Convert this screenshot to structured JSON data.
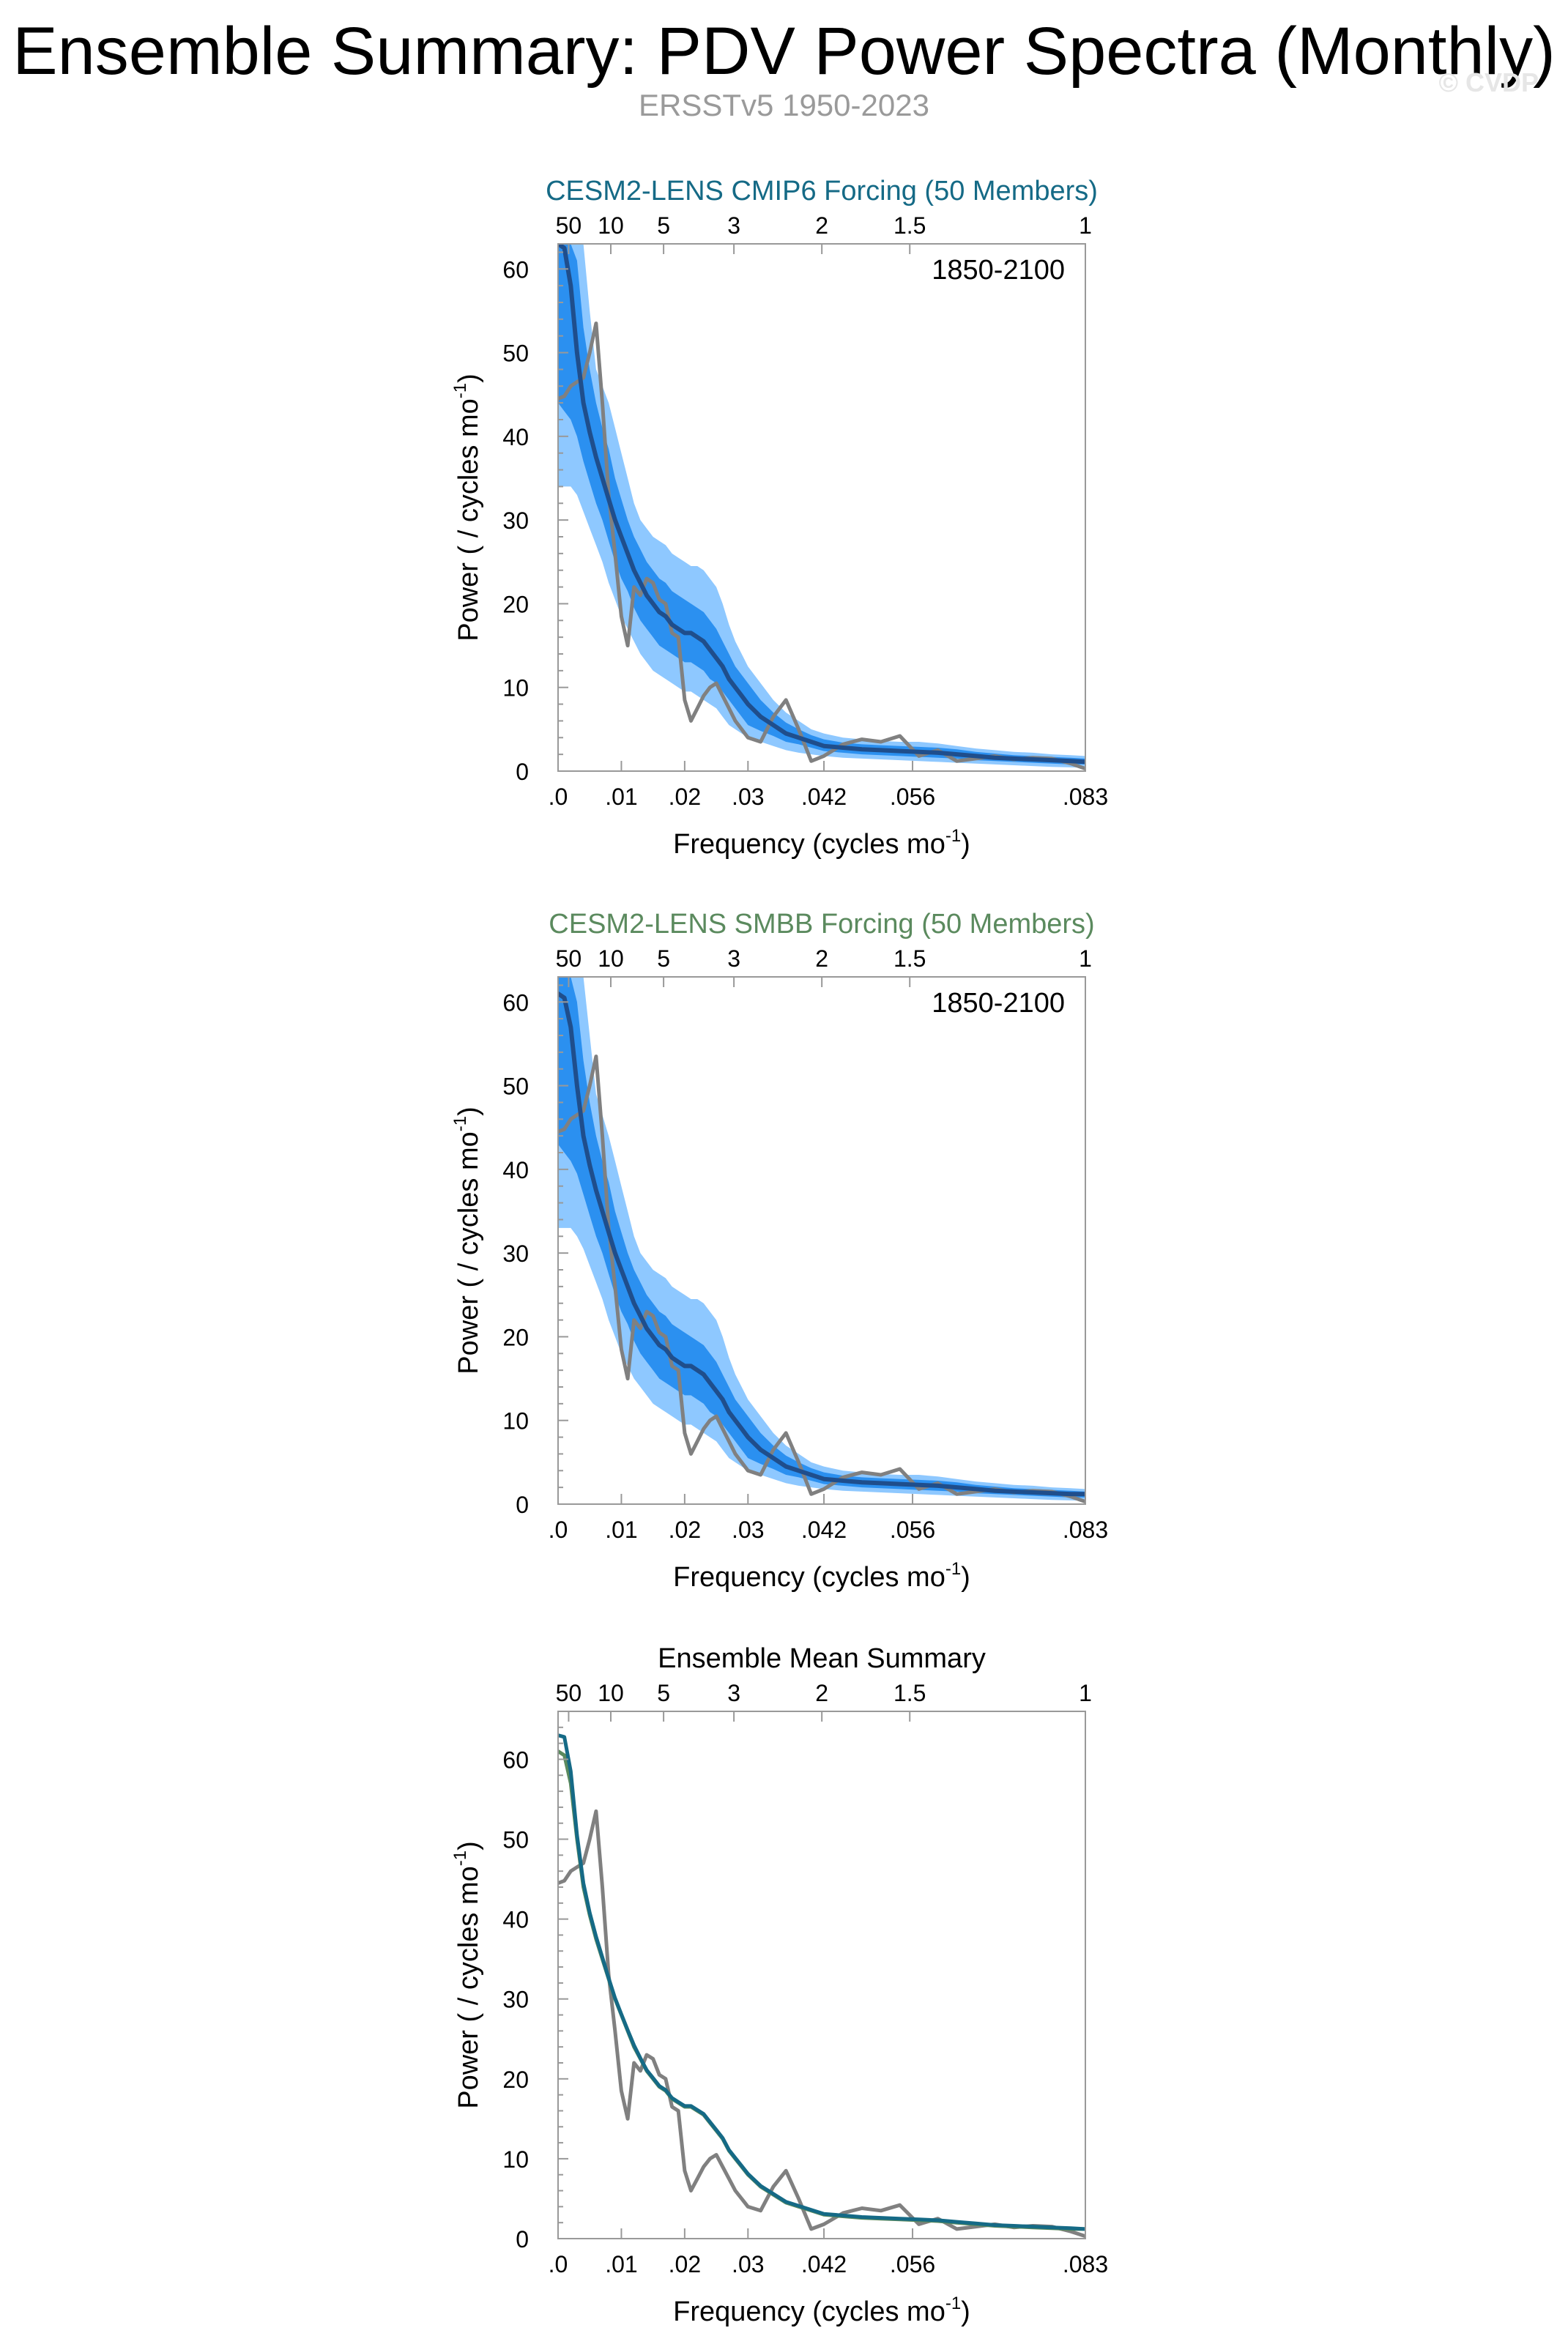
{
  "title": "Ensemble Summary: PDV Power Spectra (Monthly)",
  "subtitle": "ERSSTv5 1950-2023",
  "copyright": "© CVDP",
  "colors": {
    "cmip6": "#156a86",
    "smbb": "#5b8a5e",
    "obs": "#808080",
    "mean": "#1f4e8c",
    "band_outer": "#8ec8ff",
    "band_inner": "#2b90f0"
  },
  "chart_data": [
    {
      "type": "line",
      "title": "CESM2-LENS CMIP6 Forcing (50 Members)",
      "title_color_key": "cmip6",
      "period_label": "1850-2100",
      "xlabel": "Frequency (cycles mo",
      "xlabel_sup": "-1",
      "xlabel_end": ")",
      "ylabel": "Power ( / cycles mo",
      "ylabel_sup": "-1",
      "ylabel_end": ")",
      "xlim": [
        0,
        0.0833
      ],
      "ylim": [
        0,
        63
      ],
      "x_ticks": [
        {
          "v": 0,
          "label": ".0"
        },
        {
          "v": 0.01,
          "label": ".01"
        },
        {
          "v": 0.02,
          "label": ".02"
        },
        {
          "v": 0.03,
          "label": ".03"
        },
        {
          "v": 0.042,
          "label": ".042"
        },
        {
          "v": 0.056,
          "label": ".056"
        },
        {
          "v": 0.0833,
          "label": ".083"
        }
      ],
      "top_ticks": [
        {
          "v": 0.00167,
          "label": "50"
        },
        {
          "v": 0.00833,
          "label": "10"
        },
        {
          "v": 0.01667,
          "label": "5"
        },
        {
          "v": 0.02778,
          "label": "3"
        },
        {
          "v": 0.04167,
          "label": "2"
        },
        {
          "v": 0.05556,
          "label": "1.5"
        },
        {
          "v": 0.0833,
          "label": "1"
        }
      ],
      "y_ticks": [
        0,
        10,
        20,
        30,
        40,
        50,
        60
      ],
      "x": [
        0,
        0.001,
        0.002,
        0.003,
        0.004,
        0.005,
        0.006,
        0.007,
        0.008,
        0.009,
        0.01,
        0.011,
        0.012,
        0.013,
        0.014,
        0.015,
        0.016,
        0.017,
        0.018,
        0.019,
        0.02,
        0.021,
        0.022,
        0.023,
        0.024,
        0.025,
        0.026,
        0.027,
        0.028,
        0.029,
        0.03,
        0.032,
        0.034,
        0.036,
        0.038,
        0.04,
        0.042,
        0.045,
        0.048,
        0.051,
        0.054,
        0.057,
        0.06,
        0.063,
        0.066,
        0.069,
        0.072,
        0.075,
        0.078,
        0.081,
        0.0833
      ],
      "series": [
        {
          "name": "ensemble mean",
          "color_key": "mean",
          "width": 6,
          "values": [
            63,
            62.5,
            58,
            50,
            44,
            40.5,
            37.5,
            35,
            32.5,
            30,
            28,
            26,
            24,
            22.5,
            21,
            20,
            19,
            18.5,
            17.5,
            17,
            16.5,
            16.5,
            16,
            15.5,
            14.5,
            13.5,
            12.5,
            11,
            10,
            9,
            8,
            6.5,
            5.5,
            4.5,
            4,
            3.5,
            3,
            2.8,
            2.6,
            2.5,
            2.4,
            2.3,
            2.2,
            2.0,
            1.8,
            1.6,
            1.5,
            1.4,
            1.3,
            1.2,
            1.1
          ]
        },
        {
          "name": "ERSSTv5",
          "color_key": "obs",
          "width": 5,
          "values": [
            44.5,
            44.8,
            46,
            46.5,
            47,
            50,
            53.5,
            44,
            33,
            26,
            18.5,
            15,
            22,
            21,
            23,
            22.5,
            20.5,
            20,
            16.5,
            16,
            8.5,
            6,
            7.5,
            9,
            10,
            10.5,
            9,
            7.5,
            6,
            5,
            4,
            3.5,
            6.5,
            8.5,
            5,
            1.2,
            1.8,
            3.2,
            3.8,
            3.5,
            4.2,
            1.8,
            2.5,
            1.2,
            1.5,
            1.8,
            1.4,
            1.6,
            1.5,
            0.9,
            0.3
          ]
        }
      ],
      "band_outer_low": [
        34,
        34,
        34,
        33,
        31,
        29,
        27,
        25,
        22.5,
        20.5,
        18.5,
        17,
        15.5,
        14,
        13,
        12,
        11.5,
        11,
        10.5,
        10,
        9.5,
        9.5,
        9,
        8.5,
        8,
        7.5,
        6.5,
        5.5,
        5,
        4.5,
        4,
        3.5,
        3,
        2.5,
        2.2,
        2,
        1.8,
        1.6,
        1.5,
        1.4,
        1.3,
        1.2,
        1.1,
        1.0,
        0.9,
        0.8,
        0.7,
        0.6,
        0.5,
        0.45,
        0.4
      ],
      "band_outer_high": [
        63,
        63,
        63,
        63,
        63,
        55,
        48,
        46,
        44,
        41,
        38,
        35,
        32,
        30,
        29,
        28,
        27.5,
        27,
        26,
        25.5,
        25,
        24.5,
        24.5,
        24,
        23,
        22,
        20,
        17.5,
        15.5,
        14,
        12.5,
        10.5,
        8.5,
        7,
        6,
        5,
        4.5,
        4,
        3.8,
        3.6,
        3.5,
        3.5,
        3.3,
        3.0,
        2.7,
        2.5,
        2.3,
        2.2,
        2.0,
        1.9,
        1.8
      ],
      "band_inner_low": [
        44,
        43,
        42,
        40,
        37,
        34.5,
        32,
        30,
        27.5,
        25,
        23,
        21.5,
        19.5,
        18,
        17,
        16,
        15,
        14.5,
        14,
        13.5,
        13,
        13,
        12.5,
        12,
        11,
        10.5,
        9.5,
        8.5,
        7.5,
        6.5,
        5.5,
        4.8,
        4.2,
        3.5,
        3.2,
        2.8,
        2.4,
        2.2,
        2.0,
        1.9,
        1.8,
        1.7,
        1.6,
        1.5,
        1.3,
        1.2,
        1.1,
        1.0,
        0.9,
        0.8,
        0.8
      ],
      "band_inner_high": [
        63,
        63,
        63,
        61,
        53,
        48,
        44,
        41,
        38.5,
        35,
        32.5,
        30,
        28,
        26.5,
        25,
        24,
        23,
        22.5,
        21.5,
        21,
        20.5,
        20,
        19.5,
        19,
        18,
        17,
        15.5,
        14,
        12.5,
        11.5,
        10.5,
        8.5,
        7,
        5.8,
        5,
        4.3,
        3.8,
        3.4,
        3.2,
        3.1,
        3.0,
        2.9,
        2.8,
        2.6,
        2.3,
        2.1,
        1.9,
        1.8,
        1.7,
        1.6,
        1.5
      ]
    },
    {
      "type": "line",
      "title": "CESM2-LENS SMBB Forcing (50 Members)",
      "title_color_key": "smbb",
      "period_label": "1850-2100",
      "xlabel": "Frequency (cycles mo",
      "xlabel_sup": "-1",
      "xlabel_end": ")",
      "ylabel": "Power ( / cycles mo",
      "ylabel_sup": "-1",
      "ylabel_end": ")",
      "xlim": [
        0,
        0.0833
      ],
      "ylim": [
        0,
        63
      ],
      "x_ticks": [
        {
          "v": 0,
          "label": ".0"
        },
        {
          "v": 0.01,
          "label": ".01"
        },
        {
          "v": 0.02,
          "label": ".02"
        },
        {
          "v": 0.03,
          "label": ".03"
        },
        {
          "v": 0.042,
          "label": ".042"
        },
        {
          "v": 0.056,
          "label": ".056"
        },
        {
          "v": 0.0833,
          "label": ".083"
        }
      ],
      "top_ticks": [
        {
          "v": 0.00167,
          "label": "50"
        },
        {
          "v": 0.00833,
          "label": "10"
        },
        {
          "v": 0.01667,
          "label": "5"
        },
        {
          "v": 0.02778,
          "label": "3"
        },
        {
          "v": 0.04167,
          "label": "2"
        },
        {
          "v": 0.05556,
          "label": "1.5"
        },
        {
          "v": 0.0833,
          "label": "1"
        }
      ],
      "y_ticks": [
        0,
        10,
        20,
        30,
        40,
        50,
        60
      ],
      "x": [
        0,
        0.001,
        0.002,
        0.003,
        0.004,
        0.005,
        0.006,
        0.007,
        0.008,
        0.009,
        0.01,
        0.011,
        0.012,
        0.013,
        0.014,
        0.015,
        0.016,
        0.017,
        0.018,
        0.019,
        0.02,
        0.021,
        0.022,
        0.023,
        0.024,
        0.025,
        0.026,
        0.027,
        0.028,
        0.029,
        0.03,
        0.032,
        0.034,
        0.036,
        0.038,
        0.04,
        0.042,
        0.045,
        0.048,
        0.051,
        0.054,
        0.057,
        0.06,
        0.063,
        0.066,
        0.069,
        0.072,
        0.075,
        0.078,
        0.081,
        0.0833
      ],
      "series": [
        {
          "name": "ensemble mean",
          "color_key": "mean",
          "width": 6,
          "values": [
            61,
            60.5,
            57,
            50,
            44,
            40.5,
            37.5,
            35,
            32.5,
            30,
            28,
            26,
            24,
            22.5,
            21,
            20,
            19,
            18.5,
            17.5,
            17,
            16.5,
            16.5,
            16,
            15.5,
            14.5,
            13.5,
            12.5,
            11,
            10,
            9,
            8,
            6.5,
            5.5,
            4.5,
            4,
            3.5,
            3,
            2.8,
            2.6,
            2.5,
            2.4,
            2.3,
            2.2,
            2.0,
            1.8,
            1.6,
            1.5,
            1.4,
            1.3,
            1.2,
            1.2
          ]
        },
        {
          "name": "ERSSTv5",
          "color_key": "obs",
          "width": 5,
          "values": [
            44.5,
            44.8,
            46,
            46.5,
            47,
            50,
            53.5,
            44,
            33,
            26,
            18.5,
            15,
            22,
            21,
            23,
            22.5,
            20.5,
            20,
            16.5,
            16,
            8.5,
            6,
            7.5,
            9,
            10,
            10.5,
            9,
            7.5,
            6,
            5,
            4,
            3.5,
            6.5,
            8.5,
            5,
            1.2,
            1.8,
            3.2,
            3.8,
            3.5,
            4.2,
            1.8,
            2.5,
            1.2,
            1.5,
            1.8,
            1.4,
            1.6,
            1.5,
            0.9,
            0.3
          ]
        }
      ],
      "band_outer_low": [
        33,
        33,
        33,
        32,
        30.5,
        28.5,
        26.5,
        24.5,
        22,
        20,
        18,
        16.5,
        15,
        14,
        13,
        12,
        11.5,
        11,
        10.5,
        10,
        9.5,
        9.5,
        9,
        8.5,
        8,
        7.5,
        6.5,
        5.5,
        5,
        4.5,
        4,
        3.5,
        3,
        2.5,
        2.2,
        2,
        1.8,
        1.6,
        1.5,
        1.4,
        1.3,
        1.2,
        1.1,
        1.0,
        0.9,
        0.8,
        0.7,
        0.6,
        0.5,
        0.45,
        0.4
      ],
      "band_outer_high": [
        63,
        63,
        63,
        63,
        63,
        56,
        49,
        46.5,
        44,
        41,
        38,
        35,
        32,
        30,
        29,
        28,
        27.5,
        27,
        26,
        25.5,
        25,
        24.5,
        24.5,
        24,
        23,
        22,
        20,
        17.5,
        15.5,
        14,
        12.5,
        10.5,
        8.5,
        7,
        6,
        5,
        4.5,
        4,
        3.8,
        3.6,
        3.5,
        3.5,
        3.3,
        3.0,
        2.7,
        2.5,
        2.3,
        2.2,
        2.0,
        1.9,
        1.8
      ],
      "band_inner_low": [
        43,
        42,
        41,
        39.5,
        37,
        34.5,
        32,
        30,
        27.5,
        25,
        23,
        21.5,
        19.5,
        18,
        17,
        16,
        15,
        14.5,
        14,
        13.5,
        13,
        13,
        12.5,
        12,
        11,
        10.5,
        9.5,
        8.5,
        7.5,
        6.5,
        5.5,
        4.8,
        4.2,
        3.5,
        3.2,
        2.8,
        2.4,
        2.2,
        2.0,
        1.9,
        1.8,
        1.7,
        1.6,
        1.5,
        1.3,
        1.2,
        1.1,
        1.0,
        0.9,
        0.8,
        0.8
      ],
      "band_inner_high": [
        63,
        63,
        63,
        60,
        53,
        48,
        44,
        41,
        38.5,
        35,
        32.5,
        30,
        28,
        26.5,
        25,
        24,
        23,
        22.5,
        21.5,
        21,
        20.5,
        20,
        19.5,
        19,
        18,
        17,
        15.5,
        14,
        12.5,
        11.5,
        10.5,
        8.5,
        7,
        5.8,
        5,
        4.3,
        3.8,
        3.4,
        3.2,
        3.1,
        3.0,
        2.9,
        2.8,
        2.6,
        2.3,
        2.1,
        1.9,
        1.8,
        1.7,
        1.6,
        1.5
      ]
    },
    {
      "type": "line",
      "title": "Ensemble Mean Summary",
      "title_color_key": "black",
      "period_label": "",
      "xlabel": "Frequency (cycles mo",
      "xlabel_sup": "-1",
      "xlabel_end": ")",
      "ylabel": "Power ( / cycles mo",
      "ylabel_sup": "-1",
      "ylabel_end": ")",
      "xlim": [
        0,
        0.0833
      ],
      "ylim": [
        0,
        66
      ],
      "x_ticks": [
        {
          "v": 0,
          "label": ".0"
        },
        {
          "v": 0.01,
          "label": ".01"
        },
        {
          "v": 0.02,
          "label": ".02"
        },
        {
          "v": 0.03,
          "label": ".03"
        },
        {
          "v": 0.042,
          "label": ".042"
        },
        {
          "v": 0.056,
          "label": ".056"
        },
        {
          "v": 0.0833,
          "label": ".083"
        }
      ],
      "top_ticks": [
        {
          "v": 0.00167,
          "label": "50"
        },
        {
          "v": 0.00833,
          "label": "10"
        },
        {
          "v": 0.01667,
          "label": "5"
        },
        {
          "v": 0.02778,
          "label": "3"
        },
        {
          "v": 0.04167,
          "label": "2"
        },
        {
          "v": 0.05556,
          "label": "1.5"
        },
        {
          "v": 0.0833,
          "label": "1"
        }
      ],
      "y_ticks": [
        0,
        10,
        20,
        30,
        40,
        50,
        60
      ],
      "x": [
        0,
        0.001,
        0.002,
        0.003,
        0.004,
        0.005,
        0.006,
        0.007,
        0.008,
        0.009,
        0.01,
        0.011,
        0.012,
        0.013,
        0.014,
        0.015,
        0.016,
        0.017,
        0.018,
        0.019,
        0.02,
        0.021,
        0.022,
        0.023,
        0.024,
        0.025,
        0.026,
        0.027,
        0.028,
        0.029,
        0.03,
        0.032,
        0.034,
        0.036,
        0.038,
        0.04,
        0.042,
        0.045,
        0.048,
        0.051,
        0.054,
        0.057,
        0.06,
        0.063,
        0.066,
        0.069,
        0.072,
        0.075,
        0.078,
        0.081,
        0.0833
      ],
      "series": [
        {
          "name": "ERSSTv5",
          "color_key": "obs",
          "width": 5,
          "values": [
            44.5,
            44.8,
            46,
            46.5,
            47,
            50,
            53.5,
            44,
            33,
            26,
            18.5,
            15,
            22,
            21,
            23,
            22.5,
            20.5,
            20,
            16.5,
            16,
            8.5,
            6,
            7.5,
            9,
            10,
            10.5,
            9,
            7.5,
            6,
            5,
            4,
            3.5,
            6.5,
            8.5,
            5,
            1.2,
            1.8,
            3.2,
            3.8,
            3.5,
            4.2,
            1.8,
            2.5,
            1.2,
            1.5,
            1.8,
            1.4,
            1.6,
            1.5,
            0.9,
            0.3
          ]
        },
        {
          "name": "CESM2-LENS SMBB",
          "color_key": "smbb",
          "width": 5,
          "values": [
            61,
            60.5,
            57,
            50,
            44,
            40.5,
            37.5,
            35,
            32.5,
            30,
            28,
            26,
            24,
            22.5,
            21,
            20,
            19,
            18.5,
            17.5,
            17,
            16.5,
            16.5,
            16,
            15.5,
            14.5,
            13.5,
            12.5,
            11,
            10,
            9,
            8,
            6.5,
            5.5,
            4.5,
            4,
            3.5,
            3,
            2.8,
            2.6,
            2.5,
            2.4,
            2.3,
            2.2,
            2.0,
            1.8,
            1.6,
            1.5,
            1.4,
            1.3,
            1.2,
            1.2
          ]
        },
        {
          "name": "CESM2-LENS CMIP6",
          "color_key": "cmip6",
          "width": 5,
          "values": [
            63,
            62.8,
            58.5,
            50.5,
            44.5,
            40.8,
            37.8,
            35.2,
            32.6,
            30.1,
            28.1,
            26.1,
            24.2,
            22.6,
            21.1,
            20.1,
            19.1,
            18.6,
            17.6,
            17.1,
            16.6,
            16.6,
            16.1,
            15.6,
            14.6,
            13.6,
            12.6,
            11.1,
            10.1,
            9.1,
            8.1,
            6.6,
            5.6,
            4.6,
            4.1,
            3.6,
            3.1,
            2.9,
            2.7,
            2.6,
            2.5,
            2.4,
            2.3,
            2.1,
            1.9,
            1.7,
            1.6,
            1.5,
            1.4,
            1.3,
            1.2
          ]
        }
      ],
      "band_outer_low": null,
      "band_outer_high": null,
      "band_inner_low": null,
      "band_inner_high": null
    }
  ]
}
